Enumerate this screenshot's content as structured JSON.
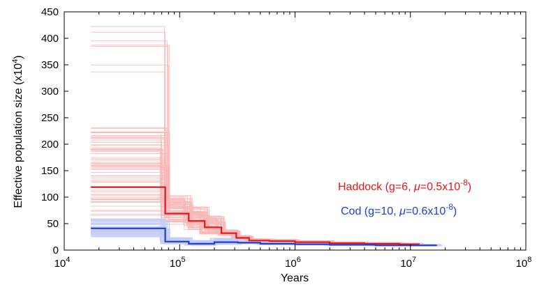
{
  "chart_data": {
    "type": "line",
    "xlabel_text": "Years",
    "ylabel_text": "Effective population size (x10",
    "ylabel_exp": "4",
    "ylabel_close": ")",
    "x_scale": "log",
    "xlim": [
      10000,
      100000000
    ],
    "ylim": [
      0,
      450
    ],
    "x_ticks": [
      {
        "base": "10",
        "exp": "4",
        "value": 10000
      },
      {
        "base": "10",
        "exp": "5",
        "value": 100000
      },
      {
        "base": "10",
        "exp": "6",
        "value": 1000000
      },
      {
        "base": "10",
        "exp": "7",
        "value": 10000000
      },
      {
        "base": "10",
        "exp": "8",
        "value": 100000000
      }
    ],
    "y_ticks": [
      "0",
      "50",
      "100",
      "150",
      "200",
      "250",
      "300",
      "350",
      "400",
      "450"
    ],
    "grid": false,
    "series": [
      {
        "name": "Haddock",
        "label_main": "Haddock (g=6, ",
        "label_mu": "μ",
        "label_rest": "=0.5x10",
        "label_exp": "-8",
        "label_close": ")",
        "color": "#e8151b",
        "bootstrap_color": "#f8b9b9",
        "x": [
          17000,
          75000,
          120000,
          165000,
          230000,
          310000,
          400000,
          600000,
          1000000,
          2000000,
          4000000,
          8000000,
          12000000
        ],
        "y": [
          119,
          69,
          55,
          43,
          32,
          23,
          18,
          17,
          15,
          13,
          12,
          11,
          11
        ]
      },
      {
        "name": "Cod",
        "label_main": "Cod (g=10, ",
        "label_mu": "μ",
        "label_rest": "=0.6x10",
        "label_exp": "-8",
        "label_close": ")",
        "color": "#1c3fd6",
        "bootstrap_color": "#c4cdf6",
        "x": [
          17000,
          75000,
          120000,
          200000,
          320000,
          500000,
          1000000,
          2000000,
          5000000,
          10000000,
          17000000
        ],
        "y": [
          41,
          16,
          12,
          15,
          14,
          12,
          11,
          10,
          9,
          9,
          9
        ]
      }
    ]
  }
}
